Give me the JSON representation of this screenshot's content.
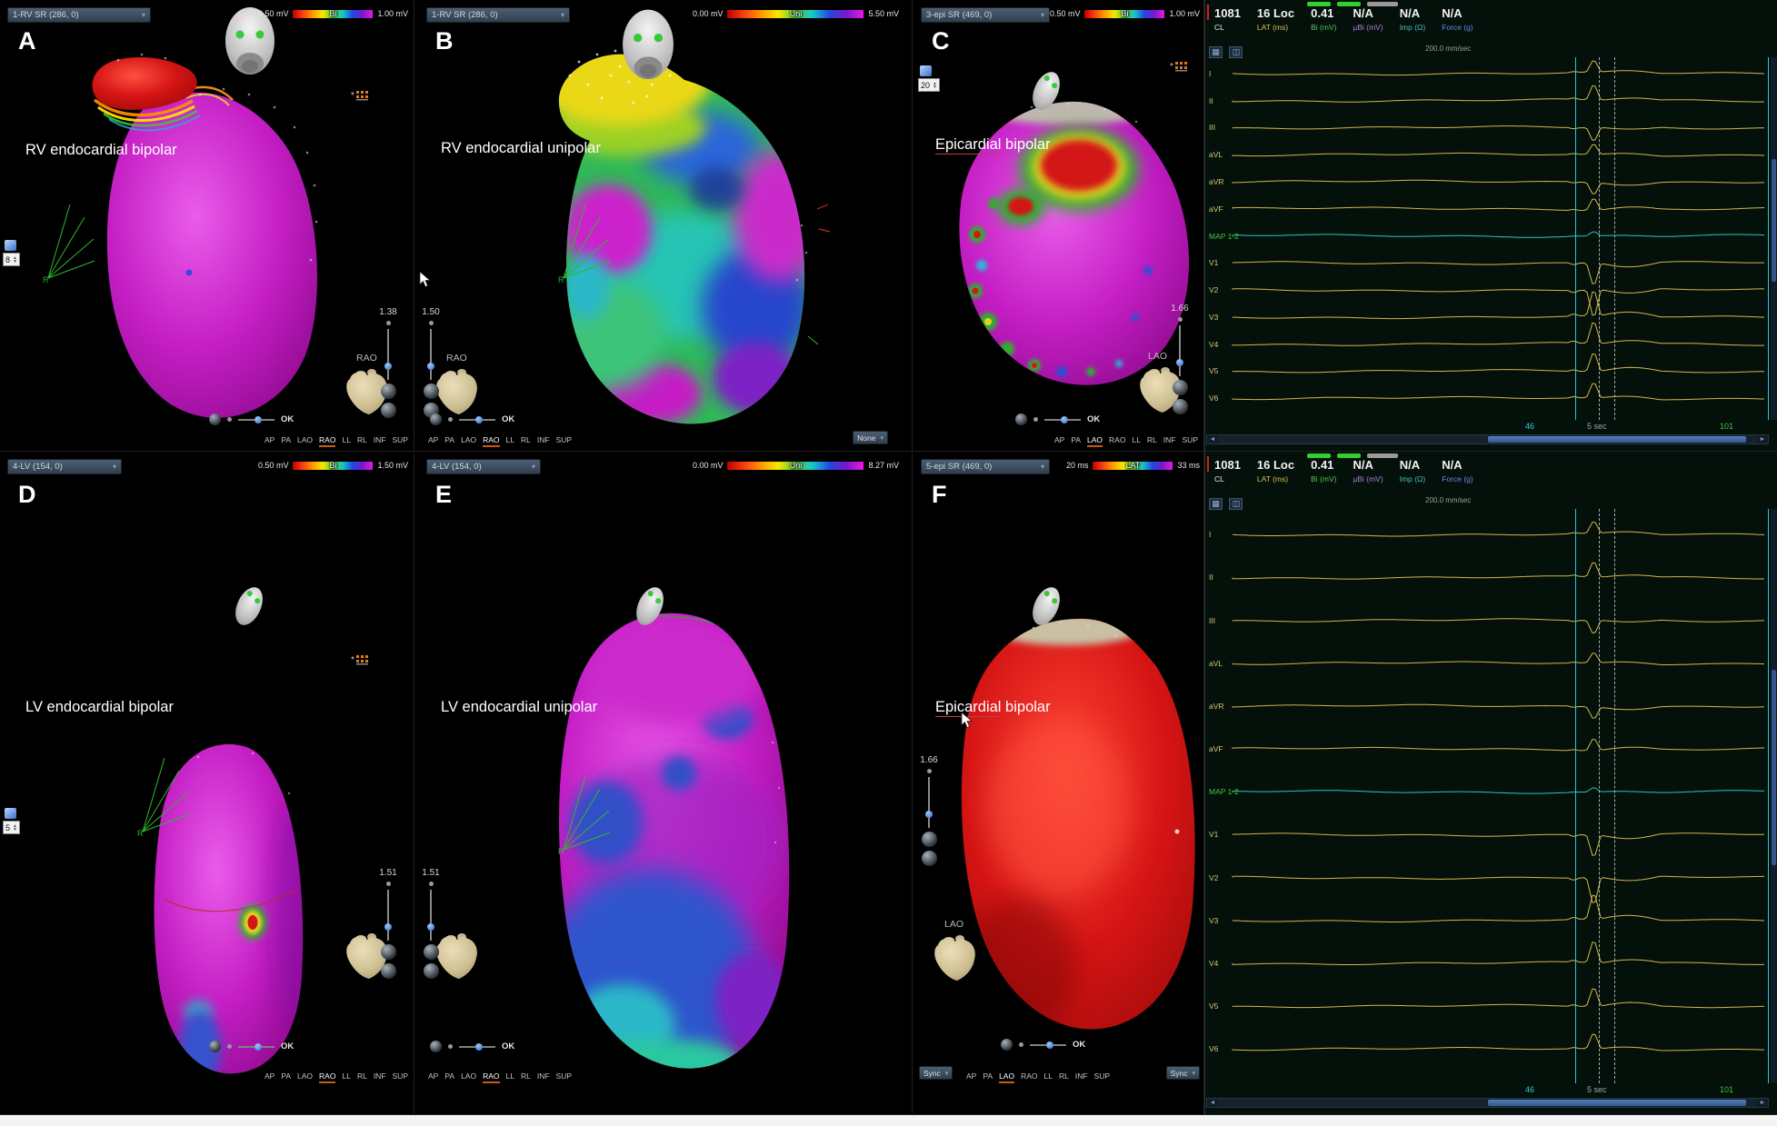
{
  "fan_axis_letter": "R",
  "orientations": [
    "AP",
    "PA",
    "LAO",
    "RAO",
    "LL",
    "RL",
    "INF",
    "SUP"
  ],
  "panels": [
    {
      "letter": "A",
      "title": "RV endocardial bipolar",
      "map_menu": "1-RV SR (286, 0)",
      "scale_min": "0.50 mV",
      "scale_label": "Bi",
      "scale_max": "1.00 mV",
      "zoom": "1.38",
      "view": "RAO",
      "active_orientation": "RAO",
      "ok": "OK",
      "fill": "8"
    },
    {
      "letter": "B",
      "title": "RV endocardial unipolar",
      "map_menu": "1-RV SR (286, 0)",
      "scale_min": "0.00 mV",
      "scale_label": "Uni",
      "scale_max": "5.50 mV",
      "zoom": "1.50",
      "view": "RAO",
      "active_orientation": "RAO",
      "ok": "OK",
      "tag_menu": "None"
    },
    {
      "letter": "C",
      "title_u": "Epicardial",
      "title_rest": " bipolar",
      "map_menu": "3-epi SR (469, 0)",
      "scale_min": "0.50 mV",
      "scale_label": "Bi",
      "scale_max": "1.00 mV",
      "zoom": "1.66",
      "view": "LAO",
      "active_orientation": "LAO",
      "ok": "OK",
      "fill": "20"
    },
    {
      "letter": "D",
      "title": "LV endocardial bipolar",
      "map_menu": "4-LV (154, 0)",
      "scale_min": "0.50 mV",
      "scale_label": "Bi",
      "scale_max": "1.50 mV",
      "zoom": "1.51",
      "view": "",
      "active_orientation": "RAO",
      "ok": "OK",
      "fill": "5"
    },
    {
      "letter": "E",
      "title": "LV endocardial unipolar",
      "map_menu": "4-LV (154, 0)",
      "scale_min": "0.00 mV",
      "scale_label": "Uni",
      "scale_max": "8.27 mV",
      "zoom": "1.51",
      "view": "",
      "active_orientation": "RAO",
      "ok": "OK"
    },
    {
      "letter": "F",
      "title_u": "Epicardial",
      "title_rest": " bipolar",
      "map_menu": "5-epi SR (469, 0)",
      "scale_min": "20 ms",
      "scale_label": "LAT",
      "scale_max": "33 ms",
      "zoom": "1.66",
      "view": "LAO",
      "active_orientation": "LAO",
      "ok": "OK",
      "sync_left": "Sync",
      "sync_right": "Sync"
    }
  ],
  "ecg": {
    "columns": [
      {
        "value": "1081",
        "label": "CL",
        "color": "#e8e8e8"
      },
      {
        "value": "16 Loc",
        "label": "LAT (ms)",
        "color": "#d8c050"
      },
      {
        "value": "0.41",
        "label": "Bi (mV)",
        "color": "#58c858"
      },
      {
        "value": "N/A",
        "label": "µBi (mV)",
        "color": "#b080d8"
      },
      {
        "value": "N/A",
        "label": "Imp (Ω)",
        "color": "#48c0c0"
      },
      {
        "value": "N/A",
        "label": "Force (g)",
        "color": "#6888e8"
      }
    ],
    "sweep": "200.0 mm/sec",
    "leads": [
      "I",
      "II",
      "III",
      "aVL",
      "aVR",
      "aVF",
      "MAP 1-2",
      "V1",
      "V2",
      "V3",
      "V4",
      "V5",
      "V6"
    ],
    "map_lead_index": 6,
    "bottom_left": "46",
    "bottom_center": "5 sec",
    "bottom_right": "101"
  }
}
